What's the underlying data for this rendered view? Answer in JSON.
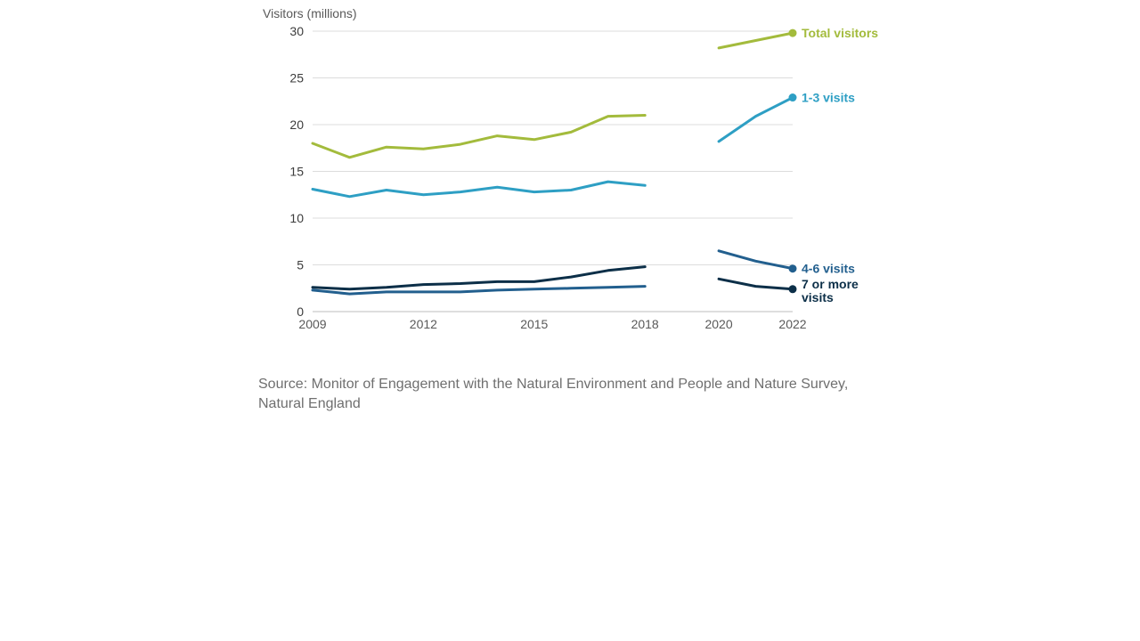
{
  "chart_data": {
    "type": "line",
    "ylabel": "Visitors (millions)",
    "ylim": [
      0,
      30
    ],
    "yticks": [
      0,
      5,
      10,
      15,
      20,
      25,
      30
    ],
    "xticks": [
      2009,
      2012,
      2015,
      2018,
      2020,
      2022
    ],
    "grid": true,
    "legend": "direct labels at line ends (right)",
    "series": [
      {
        "name": "Total visitors",
        "color": "#a3bb3c",
        "segments": [
          {
            "x": [
              2009,
              2010,
              2011,
              2012,
              2013,
              2014,
              2015,
              2016,
              2017,
              2018
            ],
            "y": [
              18.0,
              16.5,
              17.6,
              17.4,
              17.9,
              18.8,
              18.4,
              19.2,
              20.9,
              21.0
            ]
          },
          {
            "x": [
              2020,
              2021,
              2022
            ],
            "y": [
              28.2,
              29.0,
              29.8
            ]
          }
        ]
      },
      {
        "name": "1-3 visits",
        "color": "#2e9fc4",
        "segments": [
          {
            "x": [
              2009,
              2010,
              2011,
              2012,
              2013,
              2014,
              2015,
              2016,
              2017,
              2018
            ],
            "y": [
              13.1,
              12.3,
              13.0,
              12.5,
              12.8,
              13.3,
              12.8,
              13.0,
              13.9,
              13.5
            ]
          },
          {
            "x": [
              2020,
              2021,
              2022
            ],
            "y": [
              18.2,
              20.9,
              22.9
            ]
          }
        ]
      },
      {
        "name": "4-6 visits",
        "color": "#225f8e",
        "segments": [
          {
            "x": [
              2009,
              2010,
              2011,
              2012,
              2013,
              2014,
              2015,
              2016,
              2017,
              2018
            ],
            "y": [
              2.3,
              1.9,
              2.1,
              2.1,
              2.1,
              2.3,
              2.4,
              2.5,
              2.6,
              2.7
            ]
          },
          {
            "x": [
              2020,
              2021,
              2022
            ],
            "y": [
              6.5,
              5.4,
              4.6
            ]
          }
        ]
      },
      {
        "name": "7 or more visits",
        "color": "#0c2f48",
        "segments": [
          {
            "x": [
              2009,
              2010,
              2011,
              2012,
              2013,
              2014,
              2015,
              2016,
              2017,
              2018
            ],
            "y": [
              2.6,
              2.4,
              2.6,
              2.9,
              3.0,
              3.2,
              3.2,
              3.7,
              4.4,
              4.8
            ]
          },
          {
            "x": [
              2020,
              2021,
              2022
            ],
            "y": [
              3.5,
              2.7,
              2.4
            ]
          }
        ]
      }
    ]
  },
  "source": "Source: Monitor of Engagement with the Natural Environment and People and Nature Survey, Natural England"
}
